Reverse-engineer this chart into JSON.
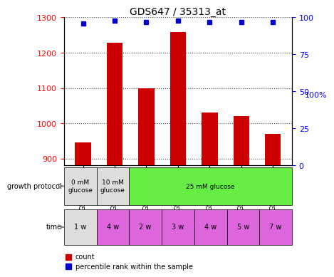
{
  "title": "GDS647 / 35313_at",
  "samples": [
    "GSM19153",
    "GSM19157",
    "GSM19154",
    "GSM19155",
    "GSM19156",
    "GSM19163",
    "GSM19164"
  ],
  "counts": [
    945,
    1228,
    1100,
    1258,
    1030,
    1020,
    970
  ],
  "percentiles": [
    96,
    98,
    97,
    98,
    97,
    97,
    97
  ],
  "ylim_left": [
    880,
    1300
  ],
  "ylim_right": [
    0,
    100
  ],
  "yticks_left": [
    900,
    1000,
    1100,
    1200,
    1300
  ],
  "yticks_right": [
    0,
    25,
    50,
    75,
    100
  ],
  "bar_color": "#cc0000",
  "dot_color": "#0000cc",
  "growth_protocol": [
    "0 mM\nglucose",
    "10 mM\nglucose",
    "25 mM glucose",
    "25 mM glucose",
    "25 mM glucose",
    "25 mM glucose",
    "25 mM glucose"
  ],
  "time": [
    "1 w",
    "4 w",
    "2 w",
    "3 w",
    "4 w",
    "5 w",
    "7 w"
  ],
  "growth_colors": [
    "#dddddd",
    "#dddddd",
    "#66dd44",
    "#66dd44",
    "#66dd44",
    "#66dd44",
    "#66dd44"
  ],
  "time_colors": [
    "#dddddd",
    "#dd66dd",
    "#dd66dd",
    "#dd66dd",
    "#dd66dd",
    "#dd66dd",
    "#dd66dd"
  ],
  "protocol_groups": [
    {
      "label": "0 mM\nglucose",
      "start": 0,
      "end": 1,
      "color": "#dddddd"
    },
    {
      "label": "10 mM\nglucose",
      "start": 1,
      "end": 2,
      "color": "#dddddd"
    },
    {
      "label": "25 mM glucose",
      "start": 2,
      "end": 7,
      "color": "#66ee44"
    }
  ]
}
